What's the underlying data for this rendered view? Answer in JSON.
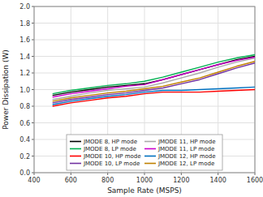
{
  "chart_data": {
    "type": "line",
    "title": "",
    "xlabel": "Sample Rate (MSPS)",
    "ylabel": "Power Dissipation (W)",
    "x": [
      500,
      600,
      700,
      800,
      900,
      1000,
      1100,
      1200,
      1300,
      1400,
      1500,
      1600
    ],
    "xlim": [
      400,
      1600
    ],
    "ylim": [
      0,
      2
    ],
    "xticks": [
      400,
      600,
      800,
      1000,
      1200,
      1400,
      1600
    ],
    "yticks": [
      {
        "value": 0,
        "label": "0.0"
      },
      0.2,
      0.4,
      0.6,
      0.8,
      {
        "value": 1,
        "label": "1.0"
      },
      1.2,
      1.4,
      1.6,
      1.8,
      {
        "value": 2,
        "label": "2.0"
      }
    ],
    "grid": true,
    "legend": "bottom",
    "series": [
      {
        "name": "JMODE 8, HP mode",
        "color": "#000000",
        "values": [
          0.93,
          0.97,
          1.0,
          1.03,
          1.05,
          1.07,
          1.12,
          1.18,
          1.24,
          1.3,
          1.36,
          1.4
        ]
      },
      {
        "name": "JMODE 10, HP mode",
        "color": "#ff0000",
        "values": [
          0.8,
          0.84,
          0.87,
          0.9,
          0.92,
          0.95,
          0.97,
          0.97,
          0.97,
          0.98,
          0.99,
          1.0
        ]
      },
      {
        "name": "JMODE 11, HP mode",
        "color": "#aaaaaa",
        "values": [
          0.88,
          0.92,
          0.96,
          0.99,
          1.01,
          1.03,
          1.08,
          1.14,
          1.2,
          1.27,
          1.33,
          1.38
        ]
      },
      {
        "name": "JMODE 12, HP mode",
        "color": "#0070c0",
        "values": [
          0.82,
          0.86,
          0.89,
          0.92,
          0.94,
          0.97,
          0.99,
          0.99,
          1.0,
          1.01,
          1.02,
          1.03
        ]
      },
      {
        "name": "JMODE 8, LP mode",
        "color": "#00b050",
        "values": [
          0.95,
          0.99,
          1.02,
          1.05,
          1.07,
          1.1,
          1.15,
          1.21,
          1.27,
          1.33,
          1.38,
          1.42
        ]
      },
      {
        "name": "JMODE 10, LP mode",
        "color": "#7030a0",
        "values": [
          0.84,
          0.88,
          0.91,
          0.94,
          0.96,
          0.99,
          1.02,
          1.07,
          1.12,
          1.19,
          1.26,
          1.32
        ]
      },
      {
        "name": "JMODE 11, LP mode",
        "color": "#cc00cc",
        "values": [
          0.91,
          0.95,
          0.98,
          1.01,
          1.04,
          1.06,
          1.12,
          1.18,
          1.24,
          1.3,
          1.35,
          1.39
        ]
      },
      {
        "name": "JMODE 12, LP mode",
        "color": "#c08000",
        "values": [
          0.86,
          0.9,
          0.93,
          0.96,
          0.98,
          1.01,
          1.04,
          1.09,
          1.14,
          1.21,
          1.28,
          1.34
        ]
      }
    ]
  }
}
